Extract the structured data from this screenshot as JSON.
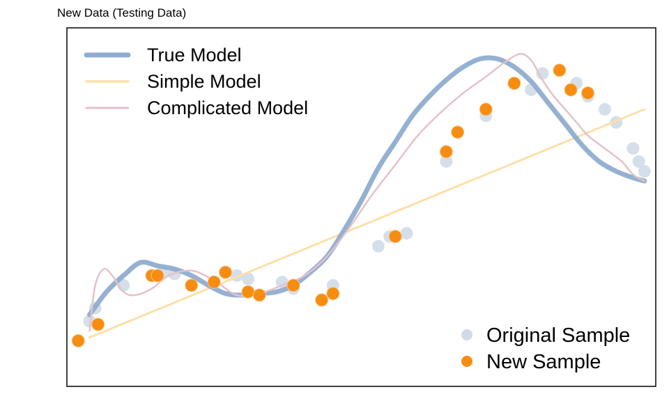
{
  "chart_data": {
    "type": "scatter",
    "title": "New Data (Testing Data)",
    "xlabel": "",
    "ylabel": "",
    "xlim": [
      -0.02,
      1.02
    ],
    "ylim": [
      -0.05,
      1.05
    ],
    "grid": false,
    "legend_placement": [
      "top-left",
      "bottom-right"
    ],
    "colors": {
      "true_model": "#8fadd0",
      "simple_model": "#fddfa8",
      "complicated_model": "#e6c1c8",
      "original_sample": "#cfdbe8",
      "new_sample": "#f78d10"
    },
    "series": [
      {
        "name": "True Model",
        "kind": "line",
        "x": [
          0.02,
          0.05,
          0.08,
          0.11,
          0.14,
          0.17,
          0.2,
          0.23,
          0.26,
          0.29,
          0.32,
          0.35,
          0.38,
          0.41,
          0.44,
          0.47,
          0.5,
          0.53,
          0.56,
          0.59,
          0.62,
          0.65,
          0.68,
          0.71,
          0.74,
          0.77,
          0.8,
          0.83,
          0.86,
          0.89,
          0.92,
          0.95,
          0.98,
          1.0
        ],
        "y": [
          0.17,
          0.24,
          0.29,
          0.33,
          0.32,
          0.31,
          0.29,
          0.26,
          0.235,
          0.23,
          0.235,
          0.24,
          0.26,
          0.3,
          0.35,
          0.43,
          0.52,
          0.62,
          0.7,
          0.78,
          0.84,
          0.89,
          0.93,
          0.955,
          0.955,
          0.93,
          0.885,
          0.82,
          0.755,
          0.69,
          0.64,
          0.61,
          0.59,
          0.58
        ]
      },
      {
        "name": "Simple Model",
        "kind": "line",
        "x": [
          0.02,
          1.0
        ],
        "y": [
          0.1,
          0.8
        ]
      },
      {
        "name": "Complicated Model",
        "kind": "line",
        "x": [
          0.02,
          0.03,
          0.045,
          0.06,
          0.08,
          0.1,
          0.13,
          0.16,
          0.2,
          0.24,
          0.28,
          0.32,
          0.36,
          0.4,
          0.44,
          0.48,
          0.52,
          0.56,
          0.6,
          0.64,
          0.68,
          0.72,
          0.75,
          0.78,
          0.8,
          0.82,
          0.84,
          0.86,
          0.88,
          0.9,
          0.93,
          0.96,
          0.98,
          1.0
        ],
        "y": [
          0.12,
          0.26,
          0.31,
          0.29,
          0.24,
          0.23,
          0.25,
          0.29,
          0.305,
          0.275,
          0.23,
          0.235,
          0.26,
          0.29,
          0.35,
          0.44,
          0.54,
          0.63,
          0.72,
          0.79,
          0.85,
          0.9,
          0.94,
          0.97,
          0.95,
          0.89,
          0.84,
          0.8,
          0.76,
          0.72,
          0.68,
          0.64,
          0.6,
          0.58
        ]
      },
      {
        "name": "Original Sample",
        "kind": "scatter",
        "x": [
          0.02,
          0.03,
          0.08,
          0.15,
          0.17,
          0.28,
          0.3,
          0.36,
          0.38,
          0.45,
          0.53,
          0.55,
          0.58,
          0.65,
          0.72,
          0.8,
          0.82,
          0.88,
          0.9,
          0.93,
          0.95,
          0.98,
          0.99,
          1.0
        ],
        "y": [
          0.15,
          0.19,
          0.26,
          0.3,
          0.295,
          0.29,
          0.28,
          0.27,
          0.25,
          0.26,
          0.38,
          0.41,
          0.42,
          0.64,
          0.78,
          0.86,
          0.91,
          0.88,
          0.84,
          0.8,
          0.76,
          0.68,
          0.64,
          0.61
        ]
      },
      {
        "name": "New Sample",
        "kind": "scatter",
        "x": [
          0.0,
          0.035,
          0.13,
          0.14,
          0.2,
          0.24,
          0.26,
          0.3,
          0.32,
          0.38,
          0.43,
          0.45,
          0.56,
          0.65,
          0.67,
          0.72,
          0.77,
          0.85,
          0.87,
          0.9
        ],
        "y": [
          0.09,
          0.14,
          0.29,
          0.29,
          0.26,
          0.27,
          0.3,
          0.24,
          0.23,
          0.26,
          0.215,
          0.235,
          0.41,
          0.67,
          0.73,
          0.8,
          0.88,
          0.92,
          0.86,
          0.85
        ]
      }
    ]
  }
}
